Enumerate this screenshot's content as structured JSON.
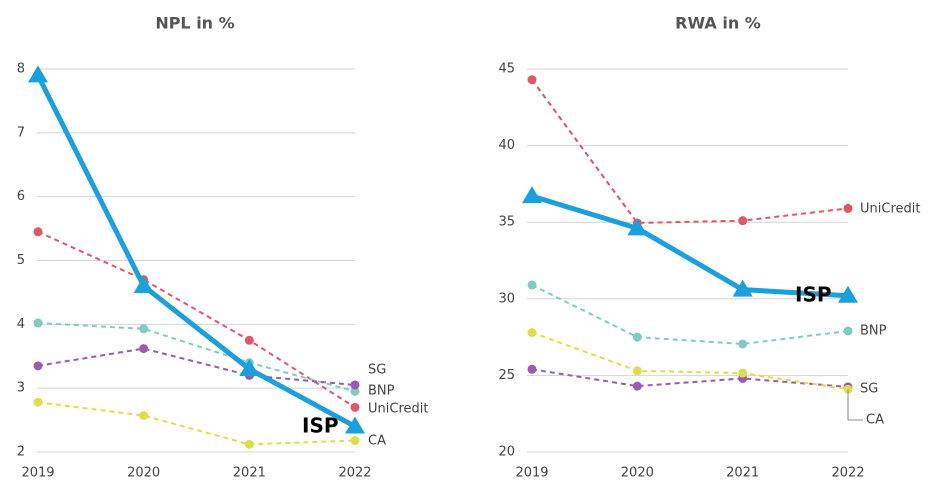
{
  "chart_data": [
    {
      "type": "line",
      "title": "NPL in %",
      "categories": [
        "2019",
        "2020",
        "2021",
        "2022"
      ],
      "ylim": [
        2,
        8
      ],
      "yticks": [
        2,
        3,
        4,
        5,
        6,
        7,
        8
      ],
      "grid": true,
      "series": [
        {
          "name": "UniCredit",
          "color": "#e0566a",
          "values": [
            5.45,
            4.7,
            3.75,
            2.7
          ]
        },
        {
          "name": "BNP",
          "color": "#7ecdc0",
          "values": [
            4.02,
            3.93,
            3.4,
            2.95
          ]
        },
        {
          "name": "SG",
          "color": "#9a5bb0",
          "values": [
            3.35,
            3.62,
            3.2,
            3.05
          ]
        },
        {
          "name": "CA",
          "color": "#dede4a",
          "values": [
            2.78,
            2.57,
            2.12,
            2.18
          ]
        },
        {
          "name": "ISP",
          "color": "#1aa0dc",
          "values": [
            7.9,
            4.6,
            3.3,
            2.4
          ]
        }
      ]
    },
    {
      "type": "line",
      "title": "RWA in %",
      "categories": [
        "2019",
        "2020",
        "2021",
        "2022"
      ],
      "ylim": [
        20,
        45
      ],
      "yticks": [
        20,
        25,
        30,
        35,
        40,
        45
      ],
      "grid": true,
      "series": [
        {
          "name": "UniCredit",
          "color": "#e0566a",
          "values": [
            44.3,
            34.95,
            35.1,
            35.9
          ]
        },
        {
          "name": "BNP",
          "color": "#7ecdc0",
          "values": [
            30.9,
            27.5,
            27.05,
            27.9
          ]
        },
        {
          "name": "SG",
          "color": "#9a5bb0",
          "values": [
            25.4,
            24.3,
            24.8,
            24.25
          ]
        },
        {
          "name": "CA",
          "color": "#dede4a",
          "values": [
            27.8,
            25.3,
            25.15,
            24.1
          ]
        },
        {
          "name": "ISP",
          "color": "#1aa0dc",
          "values": [
            36.7,
            34.6,
            30.6,
            30.2
          ]
        }
      ]
    }
  ]
}
